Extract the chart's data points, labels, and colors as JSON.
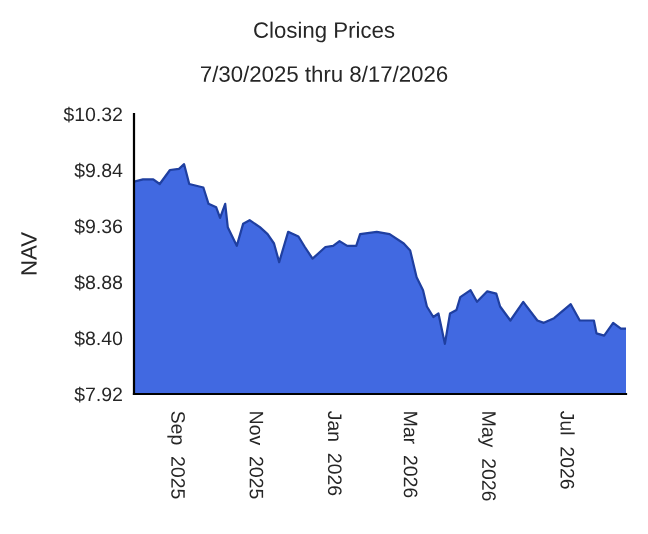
{
  "chart_data": {
    "type": "area",
    "title": "Closing Prices",
    "subtitle": "7/30/2025 thru 8/17/2026",
    "ylabel": "NAV",
    "x": [
      "2025-07-30",
      "2025-08-06",
      "2025-08-14",
      "2025-08-19",
      "2025-08-27",
      "2025-09-03",
      "2025-09-07",
      "2025-09-11",
      "2025-09-22",
      "2025-09-26",
      "2025-10-02",
      "2025-10-05",
      "2025-10-09",
      "2025-10-11",
      "2025-10-18",
      "2025-10-23",
      "2025-10-28",
      "2025-11-05",
      "2025-11-11",
      "2025-11-16",
      "2025-11-20",
      "2025-11-27",
      "2025-12-05",
      "2025-12-10",
      "2025-12-16",
      "2025-12-26",
      "2026-01-01",
      "2026-01-06",
      "2026-01-12",
      "2026-01-19",
      "2026-01-22",
      "2026-02-04",
      "2026-02-14",
      "2026-02-25",
      "2026-03-02",
      "2026-03-07",
      "2026-03-12",
      "2026-03-15",
      "2026-03-20",
      "2026-03-24",
      "2026-03-29",
      "2026-04-02",
      "2026-04-07",
      "2026-04-10",
      "2026-04-18",
      "2026-04-23",
      "2026-05-01",
      "2026-05-08",
      "2026-05-11",
      "2026-05-19",
      "2026-05-29",
      "2026-06-09",
      "2026-06-14",
      "2026-06-22",
      "2026-07-05",
      "2026-07-12",
      "2026-07-23",
      "2026-07-25",
      "2026-07-31",
      "2026-08-07",
      "2026-08-13",
      "2026-08-17"
    ],
    "series": [
      {
        "color": "#4169e1",
        "values": [
          9.74,
          9.76,
          9.76,
          9.72,
          9.84,
          9.85,
          9.89,
          9.72,
          9.69,
          9.55,
          9.52,
          9.43,
          9.55,
          9.35,
          9.19,
          9.38,
          9.41,
          9.35,
          9.29,
          9.21,
          9.05,
          9.31,
          9.27,
          9.18,
          9.08,
          9.18,
          9.19,
          9.23,
          9.19,
          9.19,
          9.29,
          9.31,
          9.29,
          9.21,
          9.15,
          8.92,
          8.81,
          8.67,
          8.58,
          8.61,
          8.35,
          8.61,
          8.64,
          8.75,
          8.81,
          8.71,
          8.8,
          8.78,
          8.67,
          8.55,
          8.71,
          8.55,
          8.53,
          8.57,
          8.69,
          8.55,
          8.55,
          8.44,
          8.42,
          8.53,
          8.48,
          8.48
        ]
      }
    ],
    "xlim": [
      "2025-07-30",
      "2026-08-17"
    ],
    "xticks": [
      {
        "value": "2025-09-01",
        "label": "Sep  2025"
      },
      {
        "value": "2025-11-01",
        "label": "Nov  2025"
      },
      {
        "value": "2026-01-01",
        "label": "Jan  2026"
      },
      {
        "value": "2026-03-01",
        "label": "Mar  2026"
      },
      {
        "value": "2026-05-01",
        "label": "May  2026"
      },
      {
        "value": "2026-07-01",
        "label": "Jul  2026"
      }
    ],
    "ylim": [
      7.92,
      10.32
    ],
    "yticks": [
      {
        "value": 7.92,
        "label": "$7.92"
      },
      {
        "value": 8.4,
        "label": "$8.40"
      },
      {
        "value": 8.88,
        "label": "$8.88"
      },
      {
        "value": 9.36,
        "label": "$9.36"
      },
      {
        "value": 9.84,
        "label": "$9.84"
      },
      {
        "value": 10.32,
        "label": "$10.32"
      }
    ],
    "grid": false,
    "legend": false
  }
}
